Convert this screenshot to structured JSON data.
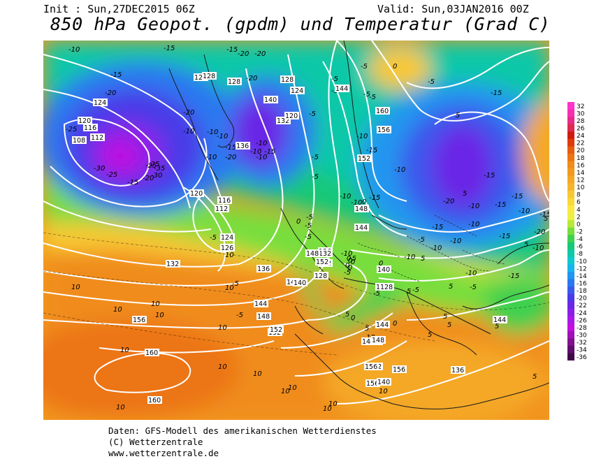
{
  "header": {
    "init": "Init : Sun,27DEC2015 06Z",
    "valid": "Valid: Sun,03JAN2016 00Z",
    "title": "850 hPa Geopot. (gpdm) und Temperatur (Grad C)"
  },
  "footer": {
    "line1": "Daten: GFS-Modell des amerikanischen Wetterdienstes",
    "line2": "(C) Wetterzentrale",
    "line3": "www.wetterzentrale.de"
  },
  "legend": {
    "levels": [
      "32",
      "30",
      "28",
      "26",
      "24",
      "22",
      "20",
      "18",
      "16",
      "14",
      "12",
      "10",
      "8",
      "6",
      "4",
      "2",
      "0",
      "-2",
      "-4",
      "-6",
      "-8",
      "-10",
      "-12",
      "-14",
      "-16",
      "-18",
      "-20",
      "-22",
      "-24",
      "-26",
      "-28",
      "-30",
      "-32",
      "-34",
      "-36"
    ],
    "colors": [
      "#ff33cc",
      "#f72fb0",
      "#e82a8a",
      "#dc2b50",
      "#d01a10",
      "#e03a0c",
      "#e65c10",
      "#ec7414",
      "#f08c1c",
      "#f29a1e",
      "#f4a826",
      "#f6b42c",
      "#f8c834",
      "#f9d838",
      "#fae840",
      "#ecf040",
      "#b8e83a",
      "#78de3c",
      "#40d050",
      "#18c878",
      "#10c8a8",
      "#10c8d0",
      "#18b4ec",
      "#2096f0",
      "#2a78f0",
      "#3a58ec",
      "#4a3ae8",
      "#6a28e6",
      "#8a20e8",
      "#a818e8",
      "#c010e0",
      "#a010b8",
      "#80108c",
      "#600c6c",
      "#400848"
    ]
  },
  "map": {
    "temperature_labels": [
      "-10",
      "-15",
      "-15",
      "-20",
      "-20",
      "-15",
      "-20",
      "-20",
      "-25",
      "-20",
      "-30",
      "-25",
      "-25",
      "-20",
      "-10",
      "-10",
      "-10",
      "-15",
      "-20",
      "-10",
      "-15",
      "-10",
      "-10",
      "-10",
      "-25",
      "-35",
      "-30",
      "-15",
      "-5",
      "-5",
      "-5",
      "-5",
      "-5",
      "-10",
      "-15",
      "-10",
      "-15",
      "-5",
      "-5",
      "0",
      "-5",
      "-10",
      "-10",
      "0",
      "-5",
      "-10",
      "-5",
      "0",
      "5",
      "5",
      "-5",
      "-10",
      "-10",
      "-15",
      "-20",
      "-15",
      "-10",
      "-15",
      "-10",
      "-5",
      "-10",
      "-15",
      "-15",
      "-5",
      "0",
      "-5",
      "-5",
      "-15",
      "-10",
      "-15",
      "-20",
      "5",
      "5",
      "-5",
      "0",
      "-5",
      "-5",
      "-10",
      "-5",
      "-15",
      "-10",
      "5",
      "5",
      "0",
      "0",
      "0",
      "0",
      "0",
      "0",
      "5",
      "5",
      "10",
      "10",
      "10",
      "10",
      "10",
      "10",
      "10",
      "10",
      "10",
      "10",
      "10",
      "10",
      "10",
      "10",
      "10",
      "10",
      "10",
      "-5",
      "-5",
      "5",
      "5",
      "5",
      "5",
      "5",
      "5"
    ],
    "geopotential_labels": [
      "124",
      "128",
      "128",
      "124",
      "120",
      "116",
      "112",
      "108",
      "140",
      "136",
      "132",
      "128",
      "124",
      "120",
      "144",
      "160",
      "156",
      "152",
      "148",
      "144",
      "140",
      "136",
      "132",
      "128",
      "120",
      "116",
      "112",
      "124",
      "126",
      "132",
      "136",
      "140",
      "144",
      "148",
      "152",
      "156",
      "160",
      "160",
      "156",
      "152",
      "148",
      "144",
      "140",
      "140",
      "144",
      "148",
      "152",
      "156",
      "136",
      "140",
      "132",
      "128",
      "148",
      "152",
      "156",
      "144"
    ]
  }
}
